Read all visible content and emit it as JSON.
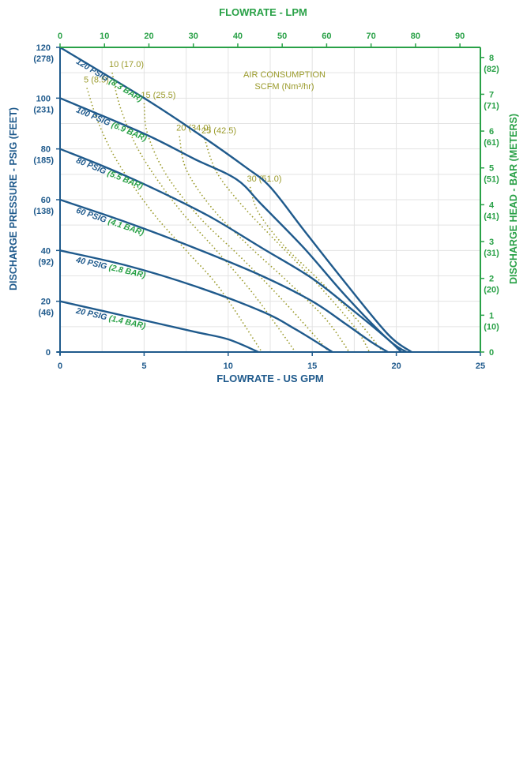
{
  "colors": {
    "pressure": "#1f5a8c",
    "metric": "#29a147",
    "air": "#9a9a2a",
    "grid": "#e3e3e3"
  },
  "chart_data": {
    "type": "line",
    "title": "",
    "x_bottom": {
      "label": "FLOWRATE - US GPM",
      "range": [
        0,
        25
      ],
      "ticks": [
        "0",
        "5",
        "10",
        "15",
        "20",
        "25"
      ]
    },
    "x_top": {
      "label": "FLOWRATE - LPM",
      "range": [
        0,
        94.6
      ],
      "ticks": [
        "0",
        "10",
        "20",
        "30",
        "40",
        "50",
        "60",
        "70",
        "80",
        "90"
      ]
    },
    "y_left": {
      "label": "DISCHARGE PRESSURE - PSIG (FEET)",
      "range": [
        0,
        120
      ],
      "ticks": [
        {
          "value": 0,
          "label": "0",
          "sub": ""
        },
        {
          "value": 20,
          "label": "20",
          "sub": "(46)"
        },
        {
          "value": 40,
          "label": "40",
          "sub": "(92)"
        },
        {
          "value": 60,
          "label": "60",
          "sub": "(138)"
        },
        {
          "value": 80,
          "label": "80",
          "sub": "(185)"
        },
        {
          "value": 100,
          "label": "100",
          "sub": "(231)"
        },
        {
          "value": 120,
          "label": "120",
          "sub": "(278)"
        }
      ]
    },
    "y_right": {
      "label": "DISCHARGE HEAD - BAR (METERS)",
      "ticks": [
        {
          "value": 0,
          "label": "0",
          "sub": ""
        },
        {
          "value": 1,
          "label": "1",
          "sub": "(10)"
        },
        {
          "value": 2,
          "label": "2",
          "sub": "(20)"
        },
        {
          "value": 3,
          "label": "3",
          "sub": "(31)"
        },
        {
          "value": 4,
          "label": "4",
          "sub": "(41)"
        },
        {
          "value": 5,
          "label": "5",
          "sub": "(51)"
        },
        {
          "value": 6,
          "label": "6",
          "sub": "(61)"
        },
        {
          "value": 7,
          "label": "7",
          "sub": "(71)"
        },
        {
          "value": 8,
          "label": "8",
          "sub": "(82)"
        }
      ]
    },
    "grid": true,
    "series": [
      {
        "name": "120 PSIG",
        "metric": "(8.3 BAR)",
        "x": [
          0,
          5,
          8,
          11,
          12.5,
          14.5,
          17,
          19.5,
          20.9
        ],
        "y": [
          120,
          100,
          87,
          73,
          65,
          48,
          27,
          7,
          0
        ]
      },
      {
        "name": "100 PSIG",
        "metric": "(6.9 BAR)",
        "x": [
          0,
          5,
          8,
          10.5,
          12,
          14.5,
          17,
          19.5,
          20.6
        ],
        "y": [
          100,
          86,
          76,
          68,
          58,
          41,
          22,
          5,
          0
        ]
      },
      {
        "name": "80 PSIG",
        "metric": "(5.5 BAR)",
        "x": [
          0,
          3,
          6,
          9,
          12,
          15,
          17.5,
          19.5,
          20.3
        ],
        "y": [
          80,
          72,
          63,
          53,
          41,
          29,
          16,
          5,
          0
        ]
      },
      {
        "name": "60 PSIG",
        "metric": "(4.1 BAR)",
        "x": [
          0,
          4,
          8,
          12,
          15,
          17,
          18.5,
          19.5
        ],
        "y": [
          60,
          51,
          41,
          30,
          20,
          11,
          4,
          0
        ]
      },
      {
        "name": "40 PSIG",
        "metric": "(2.8 BAR)",
        "x": [
          0,
          4,
          8,
          12,
          14,
          16.2
        ],
        "y": [
          40,
          34,
          26,
          16,
          9,
          0
        ]
      },
      {
        "name": "20 PSIG",
        "metric": "(1.4 BAR)",
        "x": [
          0,
          4,
          8,
          10,
          11.8
        ],
        "y": [
          20,
          14,
          8,
          5,
          0
        ]
      }
    ],
    "air_consumption": {
      "title": "AIR CONSUMPTION",
      "subtitle": "SCFM (Nm³/hr)",
      "lines": [
        {
          "label": "5 (8.5)",
          "x": [
            1.6,
            2.3,
            3.5,
            5.5,
            7.5,
            9.5,
            12
          ],
          "y": [
            104,
            90,
            74,
            55,
            40,
            25,
            0
          ]
        },
        {
          "label": "10 (17.0)",
          "x": [
            3.1,
            3.6,
            4.8,
            7,
            9.3,
            11.6,
            14
          ],
          "y": [
            110,
            96,
            78,
            57,
            40,
            22,
            0
          ]
        },
        {
          "label": "15 (25.5)",
          "x": [
            5,
            5.2,
            6.3,
            8.3,
            10.8,
            13.3,
            16
          ],
          "y": [
            98,
            86,
            70,
            53,
            37,
            20,
            0
          ]
        },
        {
          "label": "20 (34.0)",
          "x": [
            7.1,
            7.5,
            9,
            11.2,
            13.5,
            15.8,
            17.2
          ],
          "y": [
            85,
            72,
            57,
            42,
            28,
            13,
            0
          ]
        },
        {
          "label": "25 (42.5)",
          "x": [
            8.6,
            9.3,
            10.8,
            12.8,
            15,
            17.5,
            18.4
          ],
          "y": [
            84,
            71,
            58,
            44,
            29,
            10,
            0
          ]
        },
        {
          "label": "30 (51.0)",
          "x": [
            11.3,
            11.8,
            13.3,
            15.3,
            17.5,
            19.2
          ],
          "y": [
            65,
            55,
            42,
            29,
            14,
            0
          ]
        }
      ]
    }
  }
}
